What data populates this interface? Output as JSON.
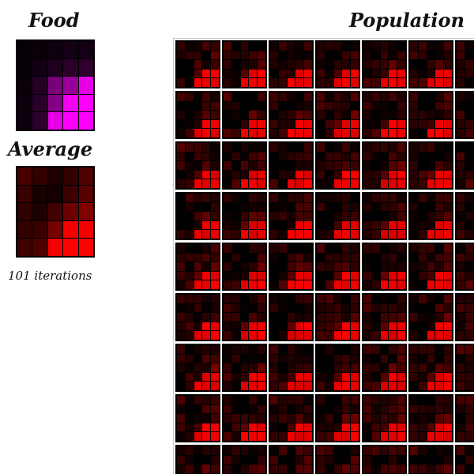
{
  "panels": {
    "food_title": "Food",
    "average_title": "Average",
    "population_title": "Population",
    "iterations_text": "101 iterations"
  },
  "colors": {
    "food_hue": "#ff00ff",
    "population_hue": "#ff0000",
    "cell_border": "#000000"
  },
  "food_matrix": [
    [
      0.02,
      0.04,
      0.06,
      0.08,
      0.08
    ],
    [
      0.03,
      0.08,
      0.12,
      0.16,
      0.18
    ],
    [
      0.04,
      0.14,
      0.48,
      0.6,
      0.9
    ],
    [
      0.05,
      0.16,
      0.52,
      0.95,
      1.0
    ],
    [
      0.06,
      0.18,
      0.9,
      1.0,
      1.0
    ]
  ],
  "average_matrix": [
    [
      0.28,
      0.2,
      0.12,
      0.2,
      0.3
    ],
    [
      0.22,
      0.1,
      0.08,
      0.24,
      0.34
    ],
    [
      0.18,
      0.12,
      0.26,
      0.42,
      0.5
    ],
    [
      0.2,
      0.22,
      0.46,
      0.96,
      0.96
    ],
    [
      0.24,
      0.3,
      0.96,
      1.0,
      1.0
    ]
  ],
  "population": {
    "rows": 9,
    "cols": 7
  }
}
